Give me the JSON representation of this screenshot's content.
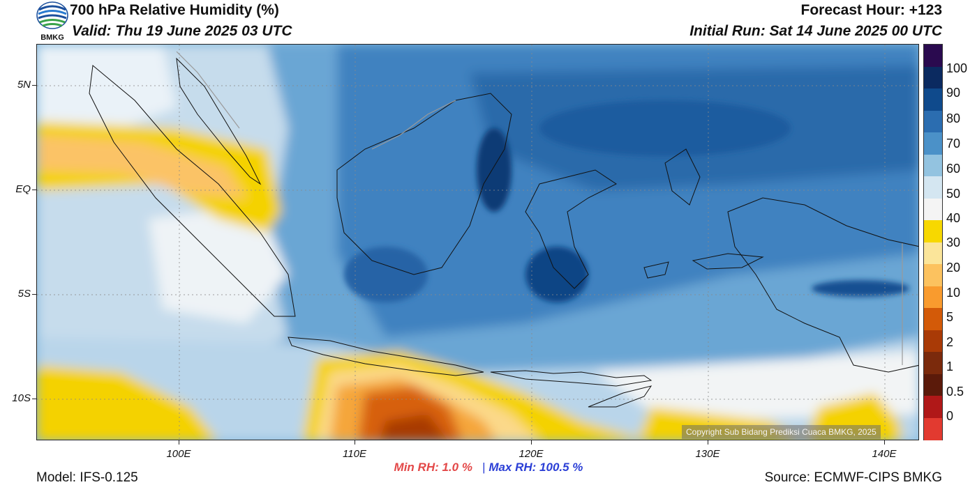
{
  "header": {
    "title": "700 hPa Relative Humidity (%)",
    "valid": "Valid: Thu 19 June 2025 03 UTC",
    "forecast_hour": "Forecast Hour: +123",
    "initial_run": "Initial Run: Sat 14 June 2025 00 UTC"
  },
  "logo": {
    "text": "BMKG",
    "icon": "bmkg-logo-icon"
  },
  "map": {
    "region": "Indonesia",
    "lat_labels": [
      "5N",
      "EQ",
      "5S",
      "10S"
    ],
    "lon_labels": [
      "100E",
      "110E",
      "120E",
      "130E",
      "140E"
    ],
    "copyright": "Copyright Sub Bidang Prediksi Cuaca BMKG, 2025"
  },
  "colorbar": {
    "labels": [
      "100",
      "90",
      "80",
      "70",
      "60",
      "50",
      "40",
      "30",
      "20",
      "10",
      "5",
      "2",
      "1",
      "0.5",
      "0"
    ],
    "colors": [
      "#2a0a4f",
      "#0b2a60",
      "#0f4a8c",
      "#2b6db0",
      "#4b91c8",
      "#93c3e0",
      "#d4e6f1",
      "#f4f4f4",
      "#f7d800",
      "#fbe59a",
      "#fcc25f",
      "#f99b2e",
      "#d35a08",
      "#a93a06",
      "#7b2a0c",
      "#5b1a0a",
      "#b01818",
      "#e23a30"
    ]
  },
  "footer": {
    "min_rh": "Min RH:   1.0 %",
    "separator": "|",
    "max_rh": "Max RH: 100.5 %",
    "model": "Model: IFS-0.125",
    "source": "Source: ECMWF-CIPS BMKG"
  }
}
